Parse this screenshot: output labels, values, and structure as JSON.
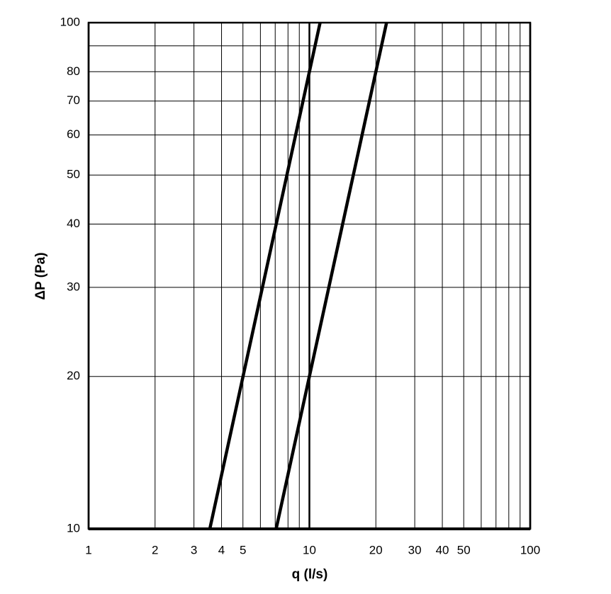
{
  "chart_data": {
    "type": "line",
    "x_label": "q (l/s)",
    "y_label": "ΔP (Pa)",
    "xscale": "log",
    "yscale": "log",
    "xlim": [
      1,
      100
    ],
    "ylim": [
      10,
      100
    ],
    "xticks": [
      1,
      2,
      3,
      4,
      5,
      10,
      20,
      30,
      40,
      50,
      100
    ],
    "x_minor_ticks": [
      6,
      7,
      8,
      9,
      60,
      70,
      80,
      90
    ],
    "yticks": [
      10,
      20,
      30,
      40,
      50,
      60,
      70,
      80,
      100
    ],
    "y_minor_ticks": [
      90
    ],
    "grid": true,
    "series": [
      {
        "color": "#000000",
        "x": [
          3.54,
          11.18
        ],
        "values": [
          10,
          100
        ]
      },
      {
        "color": "#000000",
        "x": [
          7.07,
          22.36
        ],
        "values": [
          10,
          100
        ]
      }
    ]
  }
}
